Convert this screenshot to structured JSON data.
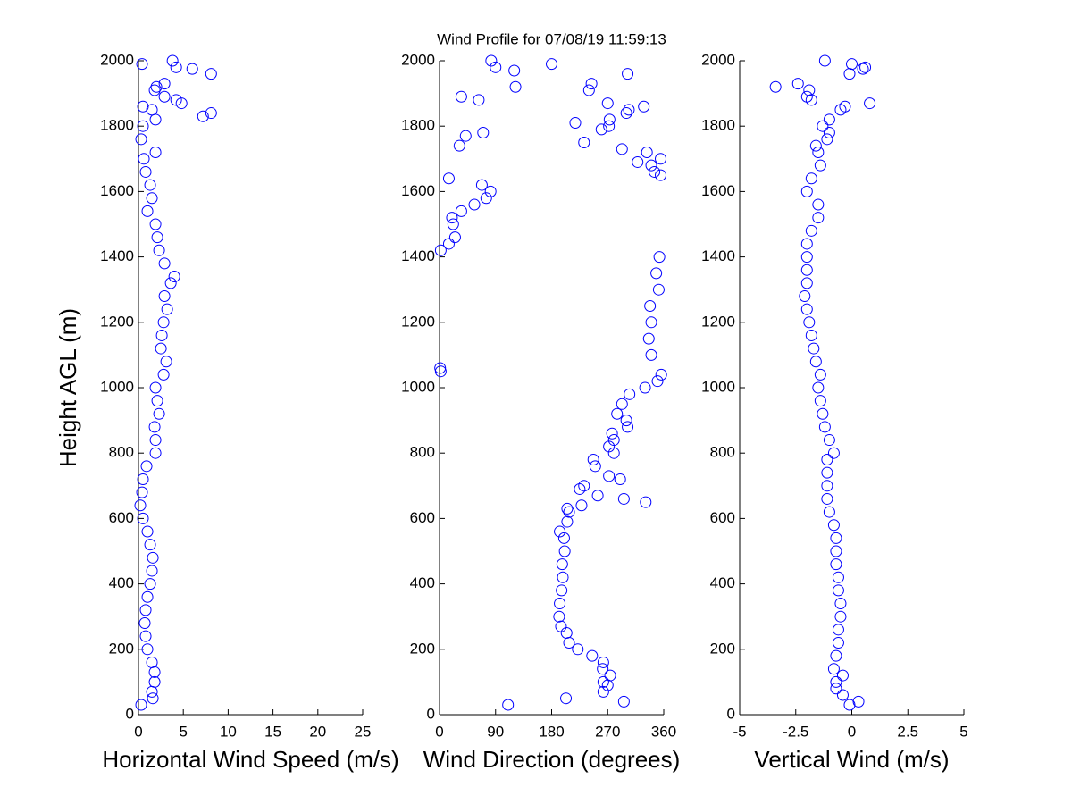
{
  "chart_data": [
    {
      "type": "scatter",
      "x_label": "Horizontal Wind Speed (m/s)",
      "y_label": "Height AGL (m)",
      "color": "#0000ff",
      "xlim": [
        0,
        25
      ],
      "xticks": [
        0,
        5,
        10,
        15,
        20,
        25
      ],
      "ylim": [
        0,
        2000
      ],
      "yticks": [
        0,
        200,
        400,
        600,
        800,
        1000,
        1200,
        1400,
        1600,
        1800,
        2000
      ],
      "x": [
        0.3,
        1.6,
        1.5,
        1.8,
        1.8,
        1.5,
        1.0,
        0.8,
        0.7,
        0.8,
        1.0,
        1.3,
        1.5,
        1.6,
        1.3,
        1.0,
        0.5,
        0.2,
        0.4,
        0.5,
        0.9,
        1.9,
        1.9,
        1.8,
        2.3,
        2.1,
        1.9,
        2.8,
        3.1,
        2.5,
        2.6,
        2.8,
        3.2,
        2.9,
        3.6,
        4.0,
        2.9,
        2.3,
        2.1,
        1.9,
        1.0,
        1.5,
        1.3,
        0.8,
        0.6,
        1.9,
        0.3,
        0.5,
        1.9,
        7.2,
        8.1,
        1.5,
        0.5,
        4.8,
        4.2,
        2.9,
        1.8,
        2.0,
        2.9,
        8.1,
        6.0,
        4.2,
        0.4,
        3.8
      ],
      "values": [
        30,
        50,
        70,
        100,
        130,
        160,
        200,
        240,
        280,
        320,
        360,
        400,
        440,
        480,
        520,
        560,
        600,
        640,
        680,
        720,
        760,
        800,
        840,
        880,
        920,
        960,
        1000,
        1040,
        1080,
        1120,
        1160,
        1200,
        1240,
        1280,
        1320,
        1340,
        1380,
        1420,
        1460,
        1500,
        1540,
        1580,
        1620,
        1660,
        1700,
        1720,
        1760,
        1800,
        1820,
        1830,
        1840,
        1850,
        1860,
        1870,
        1880,
        1890,
        1910,
        1920,
        1930,
        1960,
        1975,
        1980,
        1990,
        2000
      ]
    },
    {
      "type": "scatter",
      "title": "Wind Profile for  07/08/19 11:59:13",
      "x_label": "Wind Direction (degrees)",
      "color": "#0000ff",
      "xlim": [
        0,
        360
      ],
      "xticks": [
        0,
        90,
        180,
        270,
        360
      ],
      "ylim": [
        0,
        2000
      ],
      "yticks": [
        0,
        200,
        400,
        600,
        800,
        1000,
        1200,
        1400,
        1600,
        1800,
        2000
      ],
      "x": [
        110,
        296,
        203,
        263,
        270,
        263,
        274,
        262,
        263,
        245,
        222,
        208,
        204,
        195,
        192,
        193,
        196,
        198,
        197,
        201,
        200,
        193,
        205,
        208,
        205,
        228,
        331,
        296,
        254,
        225,
        232,
        290,
        272,
        250,
        247,
        280,
        272,
        280,
        277,
        302,
        300,
        285,
        293,
        305,
        330,
        350,
        356,
        2,
        1,
        340,
        336,
        340,
        338,
        352,
        348,
        353,
        2,
        15,
        25,
        22,
        20,
        35,
        56,
        75,
        82,
        68,
        15,
        355,
        345,
        340,
        318,
        355,
        333,
        293,
        32,
        232,
        42,
        70,
        260,
        272,
        218,
        273,
        300,
        304,
        328,
        270,
        63,
        35,
        240,
        122,
        244,
        302,
        120,
        90,
        180,
        83
      ],
      "values": [
        30,
        40,
        50,
        70,
        90,
        100,
        120,
        140,
        160,
        180,
        200,
        220,
        250,
        270,
        300,
        340,
        380,
        420,
        460,
        500,
        540,
        560,
        590,
        620,
        630,
        640,
        650,
        660,
        670,
        690,
        700,
        720,
        730,
        760,
        780,
        800,
        820,
        840,
        860,
        880,
        900,
        920,
        950,
        980,
        1000,
        1020,
        1040,
        1050,
        1060,
        1100,
        1150,
        1200,
        1250,
        1300,
        1350,
        1400,
        1420,
        1440,
        1460,
        1500,
        1520,
        1540,
        1560,
        1580,
        1600,
        1620,
        1640,
        1650,
        1660,
        1680,
        1690,
        1700,
        1720,
        1730,
        1740,
        1750,
        1770,
        1780,
        1790,
        1800,
        1810,
        1820,
        1840,
        1850,
        1860,
        1870,
        1880,
        1890,
        1910,
        1920,
        1930,
        1960,
        1970,
        1980,
        1990,
        2000
      ]
    },
    {
      "type": "scatter",
      "x_label": "Vertical Wind (m/s)",
      "color": "#0000ff",
      "xlim": [
        -5,
        5
      ],
      "xticks": [
        -5,
        -2.5,
        0,
        2.5,
        5
      ],
      "ylim": [
        0,
        2000
      ],
      "yticks": [
        0,
        200,
        400,
        600,
        800,
        1000,
        1200,
        1400,
        1600,
        1800,
        2000
      ],
      "x": [
        -0.1,
        0.3,
        -0.4,
        -0.7,
        -0.7,
        -0.4,
        -0.8,
        -0.7,
        -0.6,
        -0.6,
        -0.5,
        -0.5,
        -0.6,
        -0.6,
        -0.7,
        -0.7,
        -0.7,
        -0.8,
        -1.0,
        -1.1,
        -1.1,
        -1.1,
        -1.1,
        -0.8,
        -1.0,
        -1.2,
        -1.3,
        -1.4,
        -1.5,
        -1.4,
        -1.6,
        -1.7,
        -1.8,
        -1.9,
        -2.0,
        -2.1,
        -2.0,
        -2.0,
        -2.0,
        -2.0,
        -1.8,
        -1.5,
        -1.5,
        -2.0,
        -1.8,
        -1.4,
        -1.5,
        -1.6,
        -1.1,
        -1.0,
        -1.3,
        -1.0,
        -0.5,
        -0.3,
        0.8,
        -1.8,
        -2.0,
        -1.9,
        -3.4,
        -2.4,
        -0.1,
        0.5,
        0.6,
        0.0,
        -1.2
      ],
      "values": [
        30,
        40,
        60,
        80,
        100,
        120,
        140,
        180,
        220,
        260,
        300,
        340,
        380,
        420,
        460,
        500,
        540,
        580,
        620,
        660,
        700,
        740,
        780,
        800,
        840,
        880,
        920,
        960,
        1000,
        1040,
        1080,
        1120,
        1160,
        1200,
        1240,
        1280,
        1320,
        1360,
        1400,
        1440,
        1480,
        1520,
        1560,
        1600,
        1640,
        1680,
        1720,
        1740,
        1760,
        1780,
        1800,
        1820,
        1850,
        1860,
        1870,
        1880,
        1890,
        1910,
        1920,
        1930,
        1960,
        1975,
        1980,
        1990,
        2000
      ]
    }
  ]
}
